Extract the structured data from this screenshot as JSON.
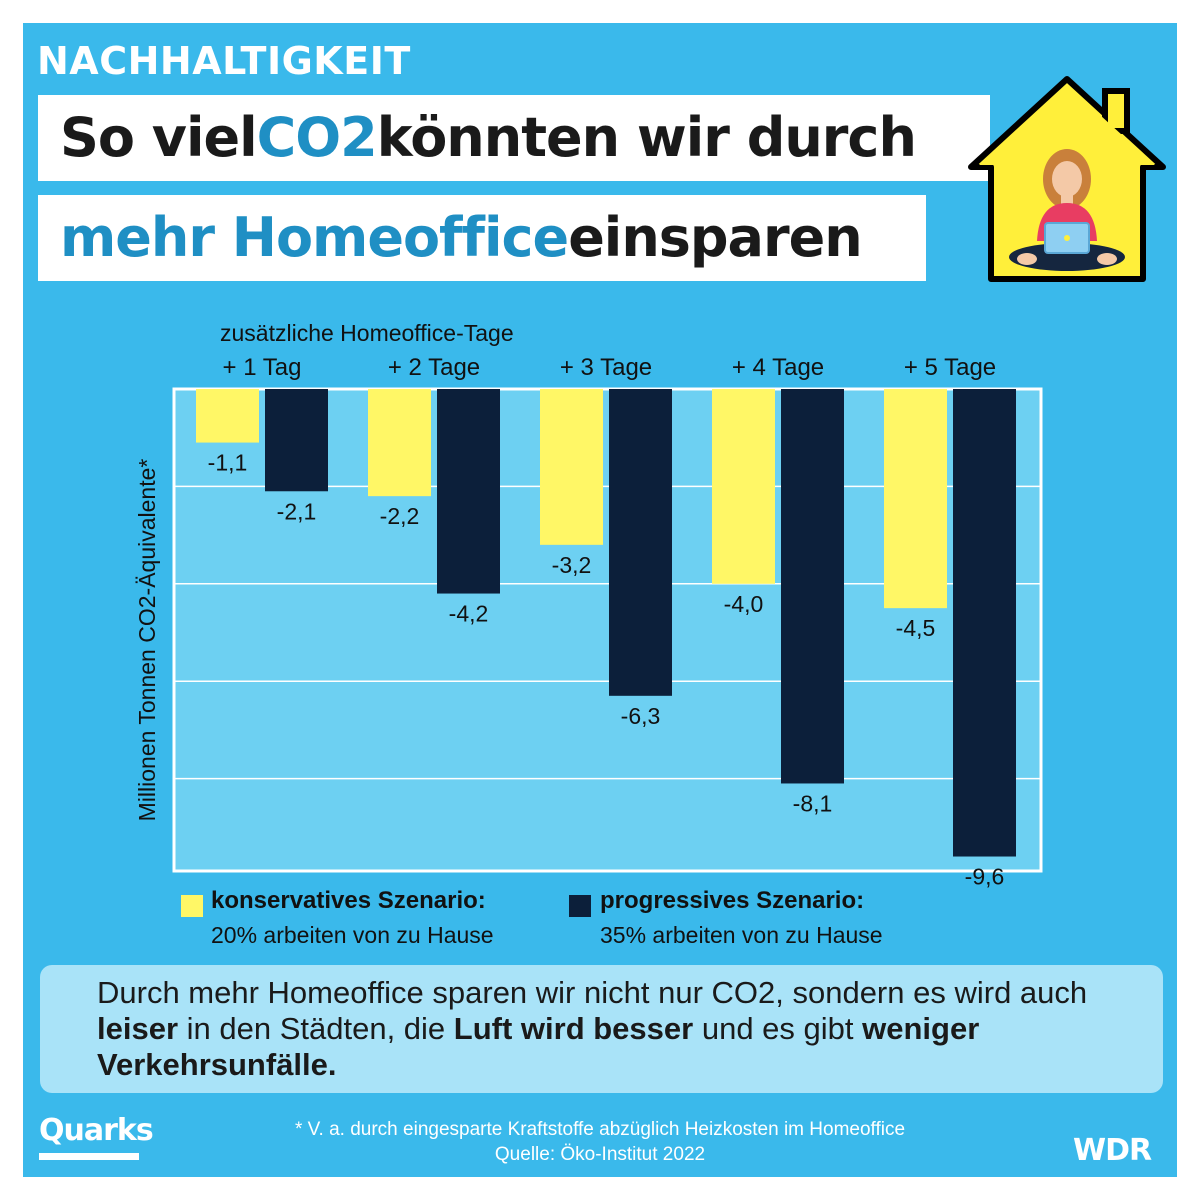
{
  "kicker": "NACHHALTIGKEIT",
  "title": {
    "line1_pre": "So viel ",
    "line1_hl": "CO2",
    "line1_post": " könnten wir durch",
    "line2_hl": "mehr Homeoffice",
    "line2_post": " einsparen"
  },
  "colors": {
    "background": "#3ab9eb",
    "plot_area": "#6dd0f2",
    "conservative": "#fff766",
    "progressive": "#0c1f3a",
    "highlight": "#1f8fc4",
    "house_yellow": "#ffef3a"
  },
  "chart_data": {
    "type": "bar",
    "category_header": "zusätzliche Homeoffice-Tage",
    "categories": [
      "+ 1 Tag",
      "+ 2 Tage",
      "+ 3 Tage",
      "+ 4 Tage",
      "+ 5 Tage"
    ],
    "series": [
      {
        "name": "konservatives Szenario:",
        "values": [
          -1.1,
          -2.2,
          -3.2,
          -4.0,
          -4.5
        ],
        "labels": [
          "-1,1",
          "-2,2",
          "-3,2",
          "-4,0",
          "-4,5"
        ]
      },
      {
        "name": "progressives Szenario:",
        "values": [
          -2.1,
          -4.2,
          -6.3,
          -8.1,
          -9.6
        ],
        "labels": [
          "-2,1",
          "-4,2",
          "-6,3",
          "-8,1",
          "-9,6"
        ]
      }
    ],
    "ylabel": "Millionen Tonnen CO2-Äquivalente*",
    "ylim": [
      -10,
      0
    ],
    "grid": true,
    "category_axis_position": "top"
  },
  "legend": [
    {
      "title": "konservatives Szenario:",
      "subtitle": "20% arbeiten von zu Hause"
    },
    {
      "title": "progressives Szenario:",
      "subtitle": "35% arbeiten von zu Hause"
    }
  ],
  "info": {
    "t1": "Durch mehr Homeoffice sparen wir nicht nur CO2, sondern es wird auch ",
    "b1": "leiser",
    "t2": " in den Städten, die ",
    "b2": "Luft wird besser",
    "t3": " und es gibt ",
    "b3": "weniger Verkehrsunfälle."
  },
  "footnote": "* V. a. durch eingesparte Kraftstoffe abzüglich Heizkosten im Homeoffice",
  "source": "Quelle: Öko-Institut 2022",
  "logos": {
    "left": "Quarks",
    "right": "WDR"
  }
}
